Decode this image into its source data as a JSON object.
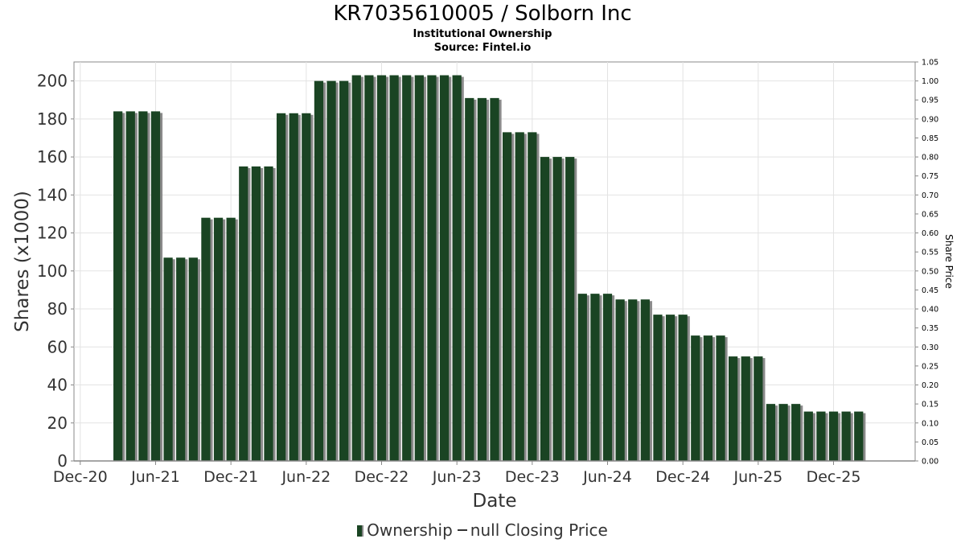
{
  "header": {
    "title": "KR7035610005 / Solborn Inc",
    "subtitle": "Institutional Ownership",
    "source": "Source: Fintel.io"
  },
  "legend": {
    "ownership_label": "Ownership",
    "price_label": "null Closing Price"
  },
  "colors": {
    "bar": "#1a4423",
    "bar_shadow": "#8a8a8a",
    "grid": "#e3e3e3",
    "axis": "#888888"
  },
  "chart_data": {
    "type": "bar",
    "title": "KR7035610005 / Solborn Inc",
    "xlabel": "Date",
    "ylabel": "Shares (x1000)",
    "y2label": "Share Price",
    "ylim": [
      0,
      210
    ],
    "y2lim": [
      0,
      1.05
    ],
    "yticks": [
      "0",
      "20",
      "40",
      "60",
      "80",
      "100",
      "120",
      "140",
      "160",
      "180",
      "200"
    ],
    "y2ticks": [
      "0.00",
      "0.05",
      "0.10",
      "0.15",
      "0.20",
      "0.25",
      "0.30",
      "0.35",
      "0.40",
      "0.45",
      "0.50",
      "0.55",
      "0.60",
      "0.65",
      "0.70",
      "0.75",
      "0.80",
      "0.85",
      "0.90",
      "0.95",
      "1.00",
      "1.05"
    ],
    "xticks": [
      "Dec-20",
      "Jun-21",
      "Dec-21",
      "Jun-22",
      "Dec-22",
      "Jun-23",
      "Dec-23",
      "Jun-24",
      "Dec-24",
      "Jun-25",
      "Dec-25"
    ],
    "x_range_months": [
      -0.5,
      66.5
    ],
    "bar_start_month": 3,
    "series": [
      {
        "name": "Ownership",
        "values": [
          184,
          184,
          184,
          184,
          107,
          107,
          107,
          128,
          128,
          128,
          155,
          155,
          155,
          183,
          183,
          183,
          200,
          200,
          200,
          203,
          203,
          203,
          203,
          203,
          203,
          203,
          203,
          203,
          191,
          191,
          191,
          173,
          173,
          173,
          160,
          160,
          160,
          88,
          88,
          88,
          85,
          85,
          85,
          77,
          77,
          77,
          66,
          66,
          66,
          55,
          55,
          55,
          30,
          30,
          30,
          26,
          26,
          26,
          26,
          26
        ]
      }
    ]
  }
}
